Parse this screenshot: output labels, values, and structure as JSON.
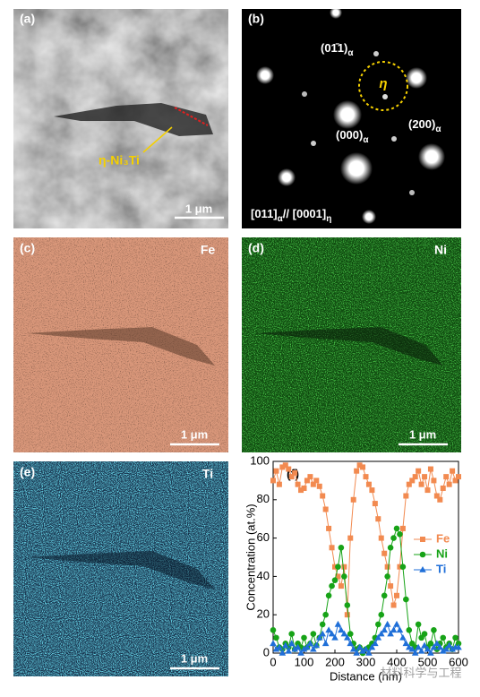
{
  "panels": {
    "a": {
      "label": "(a)",
      "annotation": "η-Ni₃Ti",
      "scale": "1 μm"
    },
    "b": {
      "label": "(b)",
      "spots": [
        {
          "text": "(01̄1)",
          "sub": "α"
        },
        {
          "text": "(000)",
          "sub": "α"
        },
        {
          "text": "(200)",
          "sub": "α"
        }
      ],
      "eta": "η",
      "zone": {
        "text": "[011]",
        "sub": "α",
        "mid": "// [0001]",
        "sub2": "η"
      }
    },
    "c": {
      "label": "(c)",
      "element": "Fe",
      "scale": "1 μm"
    },
    "d": {
      "label": "(d)",
      "element": "Ni",
      "scale": "1 μm"
    },
    "e": {
      "label": "(e)",
      "element": "Ti",
      "scale": "1 μm"
    },
    "f": {
      "label": "(f)"
    }
  },
  "watermark": "材料科学与工程",
  "chart_data": {
    "type": "line",
    "xlabel": "Distance (nm)",
    "ylabel": "Concentration (at.%)",
    "xlim": [
      0,
      600
    ],
    "xticks": [
      0,
      100,
      200,
      300,
      400,
      500,
      600
    ],
    "ylim": [
      0,
      100
    ],
    "yticks": [
      0,
      20,
      40,
      60,
      80,
      100
    ],
    "legend": "right",
    "x": [
      0,
      10,
      20,
      30,
      40,
      50,
      60,
      70,
      80,
      90,
      100,
      110,
      120,
      130,
      140,
      150,
      160,
      170,
      180,
      190,
      200,
      210,
      220,
      230,
      240,
      250,
      260,
      270,
      280,
      290,
      300,
      310,
      320,
      330,
      340,
      350,
      360,
      370,
      380,
      390,
      400,
      410,
      420,
      430,
      440,
      450,
      460,
      470,
      480,
      490,
      500,
      510,
      520,
      530,
      540,
      550,
      560,
      570,
      580,
      590,
      600
    ],
    "series": [
      {
        "name": "Fe",
        "color": "#f28a50",
        "marker": "square",
        "values": [
          90,
          95,
          88,
          97,
          98,
          96,
          92,
          94,
          88,
          85,
          86,
          90,
          92,
          88,
          90,
          87,
          82,
          75,
          65,
          55,
          45,
          40,
          35,
          45,
          20,
          60,
          80,
          95,
          98,
          97,
          92,
          88,
          85,
          78,
          70,
          60,
          52,
          45,
          35,
          25,
          30,
          45,
          65,
          82,
          88,
          90,
          92,
          95,
          88,
          92,
          85,
          96,
          90,
          82,
          80,
          86,
          92,
          88,
          95,
          90,
          92
        ]
      },
      {
        "name": "Ni",
        "color": "#17a317",
        "marker": "circle",
        "values": [
          12,
          8,
          3,
          2,
          5,
          3,
          10,
          2,
          5,
          3,
          8,
          3,
          5,
          10,
          4,
          8,
          15,
          20,
          30,
          35,
          38,
          45,
          55,
          40,
          25,
          10,
          5,
          2,
          3,
          0,
          2,
          3,
          5,
          8,
          15,
          20,
          30,
          40,
          55,
          60,
          65,
          62,
          45,
          28,
          12,
          5,
          3,
          15,
          8,
          10,
          3,
          5,
          12,
          2,
          5,
          8,
          3,
          5,
          2,
          8,
          5
        ]
      },
      {
        "name": "Ti",
        "color": "#1f6fd8",
        "marker": "triangle",
        "values": [
          5,
          2,
          3,
          0,
          4,
          1,
          5,
          2,
          3,
          0,
          2,
          3,
          5,
          2,
          4,
          8,
          10,
          5,
          12,
          10,
          8,
          15,
          12,
          10,
          8,
          5,
          2,
          0,
          3,
          1,
          2,
          0,
          3,
          5,
          8,
          10,
          12,
          15,
          10,
          12,
          15,
          12,
          8,
          5,
          3,
          2,
          0,
          3,
          1,
          4,
          2,
          0,
          3,
          5,
          3,
          1,
          2,
          4,
          2,
          3,
          3
        ]
      }
    ]
  }
}
